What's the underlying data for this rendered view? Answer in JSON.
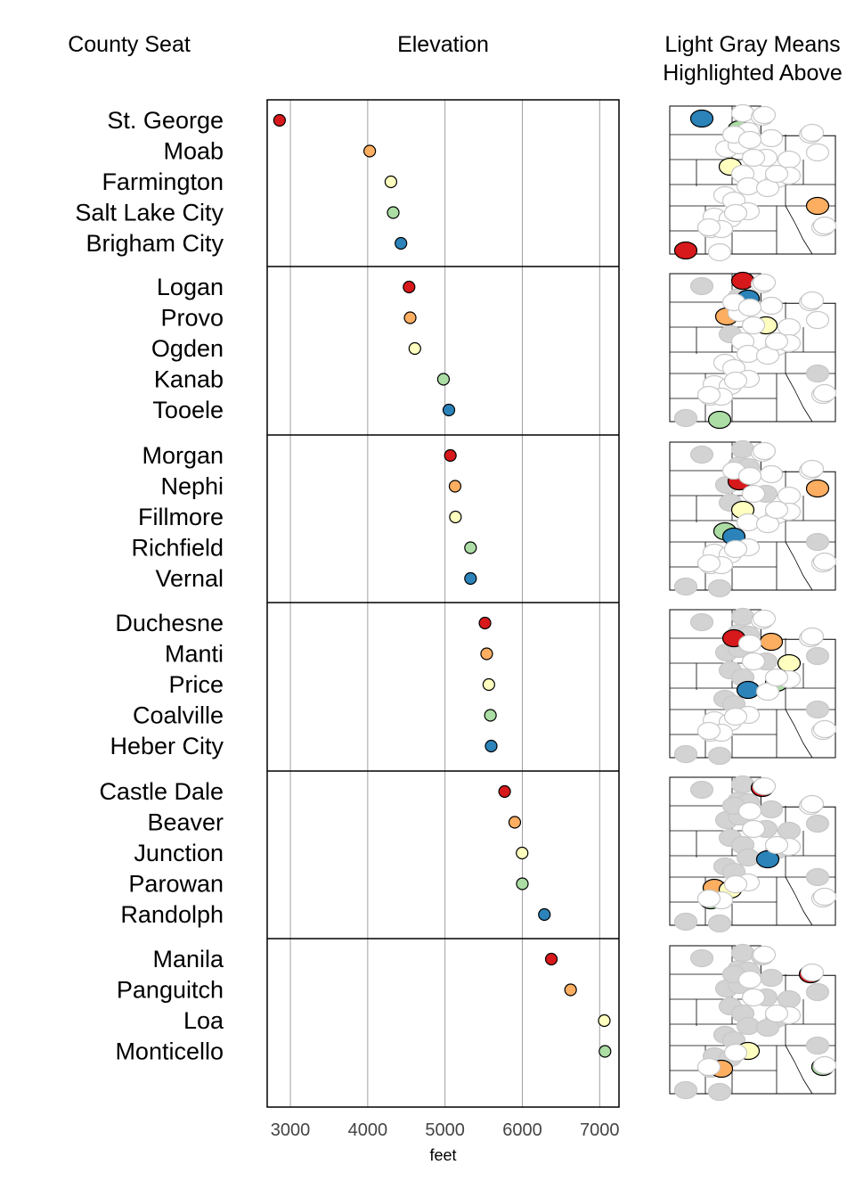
{
  "headers": {
    "county_seat": "County Seat",
    "elevation": "Elevation",
    "map_line1": "Light Gray Means",
    "map_line2": "Highlighted Above"
  },
  "colors": {
    "group_palette": [
      "#d7191c",
      "#fdae61",
      "#ffffbf",
      "#abdda4",
      "#2b83ba"
    ],
    "previous_highlight": "#d3d3d3",
    "not_yet_shown": "#ffffff",
    "grid": "#a0a0a0"
  },
  "chart_data": {
    "type": "scatter",
    "title": "Elevation",
    "xlabel": "feet",
    "xlim": [
      2700,
      7250
    ],
    "xticks": [
      3000,
      4000,
      5000,
      6000,
      7000
    ],
    "grid": true,
    "groups": [
      {
        "names": [
          "St. George",
          "Moab",
          "Farmington",
          "Salt Lake City",
          "Brigham City"
        ],
        "values": [
          2860,
          4026,
          4300,
          4330,
          4430
        ]
      },
      {
        "names": [
          "Logan",
          "Provo",
          "Ogden",
          "Kanab",
          "Tooele"
        ],
        "values": [
          4535,
          4549,
          4610,
          4980,
          5050
        ]
      },
      {
        "names": [
          "Morgan",
          "Nephi",
          "Fillmore",
          "Richfield",
          "Vernal"
        ],
        "values": [
          5069,
          5130,
          5135,
          5330,
          5330
        ]
      },
      {
        "names": [
          "Duchesne",
          "Manti",
          "Price",
          "Coalville",
          "Heber City"
        ],
        "values": [
          5517,
          5539,
          5567,
          5587,
          5597
        ]
      },
      {
        "names": [
          "Castle Dale",
          "Beaver",
          "Junction",
          "Parowan",
          "Randolph"
        ],
        "values": [
          5771,
          5902,
          5997,
          6000,
          6285
        ]
      },
      {
        "names": [
          "Manila",
          "Panguitch",
          "Loa",
          "Monticello"
        ],
        "values": [
          6375,
          6624,
          7060,
          7069
        ]
      }
    ]
  }
}
